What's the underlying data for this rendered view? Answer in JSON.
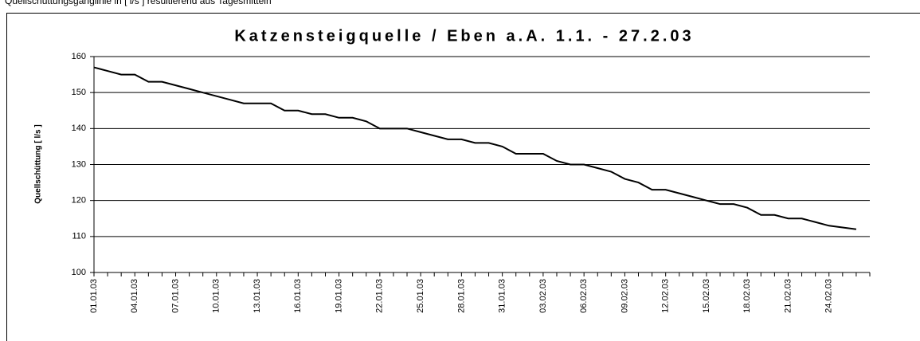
{
  "header": {
    "text": "Quellschüttungsganglinie in [ l/s ] resultierend aus Tagesmitteln"
  },
  "chart_data": {
    "type": "line",
    "title": "Katzensteigquelle / Eben a.A.  1.1. - 27.2.03",
    "y_label": "Quellschüttung [ l/s ]",
    "categories": [
      "01.01.03",
      null,
      null,
      "04.01.03",
      null,
      null,
      "07.01.03",
      null,
      null,
      "10.01.03",
      null,
      null,
      "13.01.03",
      null,
      null,
      "16.01.03",
      null,
      null,
      "19.01.03",
      null,
      null,
      "22.01.03",
      null,
      null,
      "25.01.03",
      null,
      null,
      "28.01.03",
      null,
      null,
      "31.01.03",
      null,
      null,
      "03.02.03",
      null,
      null,
      "06.02.03",
      null,
      null,
      "09.02.03",
      null,
      null,
      "12.02.03",
      null,
      null,
      "15.02.03",
      null,
      null,
      "18.02.03",
      null,
      null,
      "21.02.03",
      null,
      null,
      "24.02.03",
      null,
      null
    ],
    "values": [
      157,
      156,
      155,
      155,
      153,
      153,
      152,
      151,
      150,
      149,
      148,
      147,
      147,
      147,
      145,
      145,
      144,
      144,
      143,
      143,
      142,
      140,
      140,
      140,
      139,
      138,
      137,
      137,
      136,
      136,
      135,
      133,
      133,
      133,
      131,
      130,
      130,
      129,
      128,
      126,
      125,
      123,
      123,
      122,
      121,
      120,
      119,
      119,
      118,
      116,
      116,
      115,
      115,
      114,
      113,
      112.5,
      112
    ],
    "color": "#000000",
    "ylim": [
      100,
      160
    ],
    "yticks": [
      100,
      110,
      120,
      130,
      140,
      150,
      160
    ],
    "grid": true
  }
}
